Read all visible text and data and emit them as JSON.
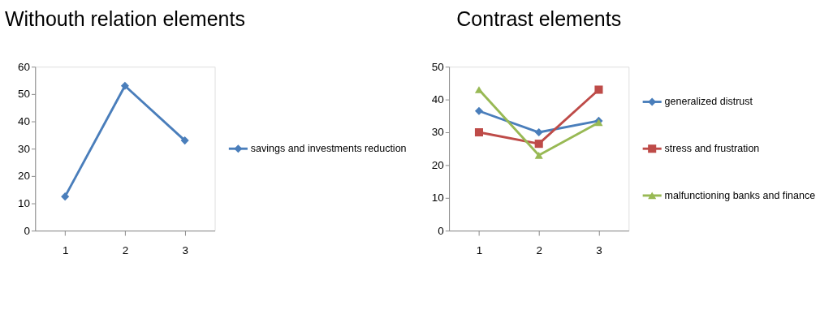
{
  "chart_data": [
    {
      "type": "line",
      "title": "Withouth relation elements",
      "categories": [
        "1",
        "2",
        "3"
      ],
      "ylim": [
        0,
        60
      ],
      "yticks": [
        0,
        10,
        20,
        30,
        40,
        50,
        60
      ],
      "grid": false,
      "legend": "right",
      "series": [
        {
          "name": "savings and investments reduction",
          "color": "#4a7ebb",
          "marker": "diamond",
          "values": [
            12.5,
            53,
            33
          ]
        }
      ]
    },
    {
      "type": "line",
      "title": "Contrast elements",
      "categories": [
        "1",
        "2",
        "3"
      ],
      "ylim": [
        0,
        50
      ],
      "yticks": [
        0,
        10,
        20,
        30,
        40,
        50
      ],
      "grid": false,
      "legend": "right",
      "series": [
        {
          "name": "generalized distrust",
          "color": "#4a7ebb",
          "marker": "diamond",
          "values": [
            36.5,
            30,
            33.5
          ]
        },
        {
          "name": "stress and frustration",
          "color": "#be4b48",
          "marker": "square",
          "values": [
            30,
            26.5,
            43
          ]
        },
        {
          "name": "malfunctioning banks and finance",
          "color": "#98b954",
          "marker": "triangle",
          "values": [
            43,
            23,
            33
          ]
        }
      ]
    }
  ]
}
